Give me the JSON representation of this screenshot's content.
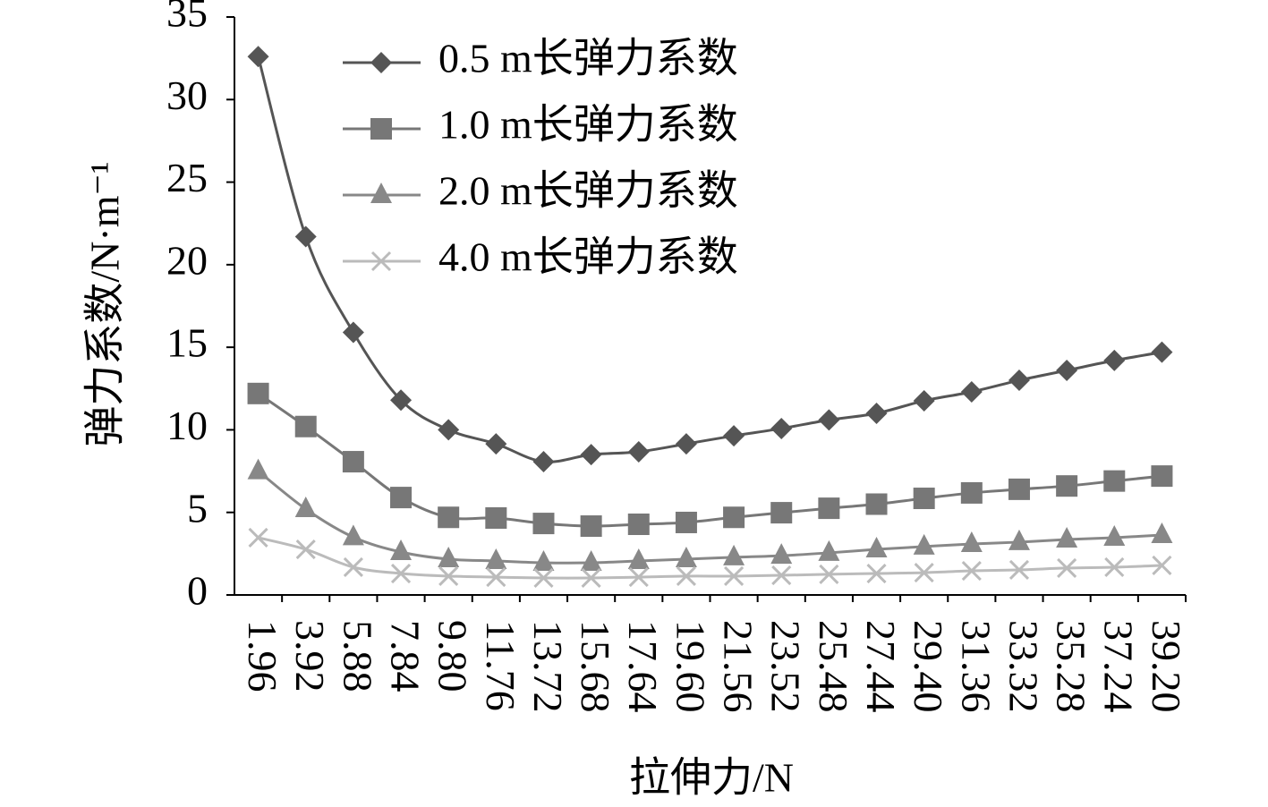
{
  "chart_data": {
    "type": "line",
    "x_label": "拉伸力/N",
    "y_label": "弹力系数/N·m⁻¹",
    "categories": [
      "1.96",
      "3.92",
      "5.88",
      "7.84",
      "9.80",
      "11.76",
      "13.72",
      "15.68",
      "17.64",
      "19.60",
      "21.56",
      "23.52",
      "25.48",
      "27.44",
      "29.40",
      "31.36",
      "33.32",
      "35.28",
      "37.24",
      "39.20"
    ],
    "series": [
      {
        "name": "0.5 m长弹力系数",
        "color": "#555555",
        "marker": "diamond",
        "values": [
          32.6,
          21.7,
          15.9,
          11.8,
          10.0,
          9.15,
          8.07,
          8.5,
          8.67,
          9.15,
          9.64,
          10.08,
          10.6,
          11.0,
          11.76,
          12.3,
          13.0,
          13.6,
          14.2,
          14.7
        ]
      },
      {
        "name": "1.0 m长弹力系数",
        "color": "#777777",
        "marker": "square",
        "values": [
          12.2,
          10.2,
          8.07,
          5.9,
          4.7,
          4.66,
          4.33,
          4.17,
          4.28,
          4.39,
          4.7,
          4.98,
          5.25,
          5.5,
          5.85,
          6.18,
          6.4,
          6.6,
          6.9,
          7.2
        ]
      },
      {
        "name": "2.0 m长弹力系数",
        "color": "#888888",
        "marker": "triangle",
        "values": [
          7.5,
          5.2,
          3.5,
          2.6,
          2.17,
          2.06,
          1.95,
          1.95,
          2.06,
          2.17,
          2.28,
          2.38,
          2.55,
          2.76,
          2.93,
          3.09,
          3.2,
          3.36,
          3.47,
          3.63
        ]
      },
      {
        "name": "4.0 m长弹力系数",
        "color": "#bbbbbb",
        "marker": "x",
        "values": [
          3.47,
          2.76,
          1.68,
          1.3,
          1.14,
          1.08,
          1.03,
          1.03,
          1.08,
          1.14,
          1.14,
          1.19,
          1.25,
          1.3,
          1.35,
          1.46,
          1.52,
          1.63,
          1.68,
          1.79
        ]
      }
    ],
    "ylim": [
      0,
      35
    ],
    "yticks": [
      0,
      5,
      10,
      15,
      20,
      25,
      30,
      35
    ]
  }
}
